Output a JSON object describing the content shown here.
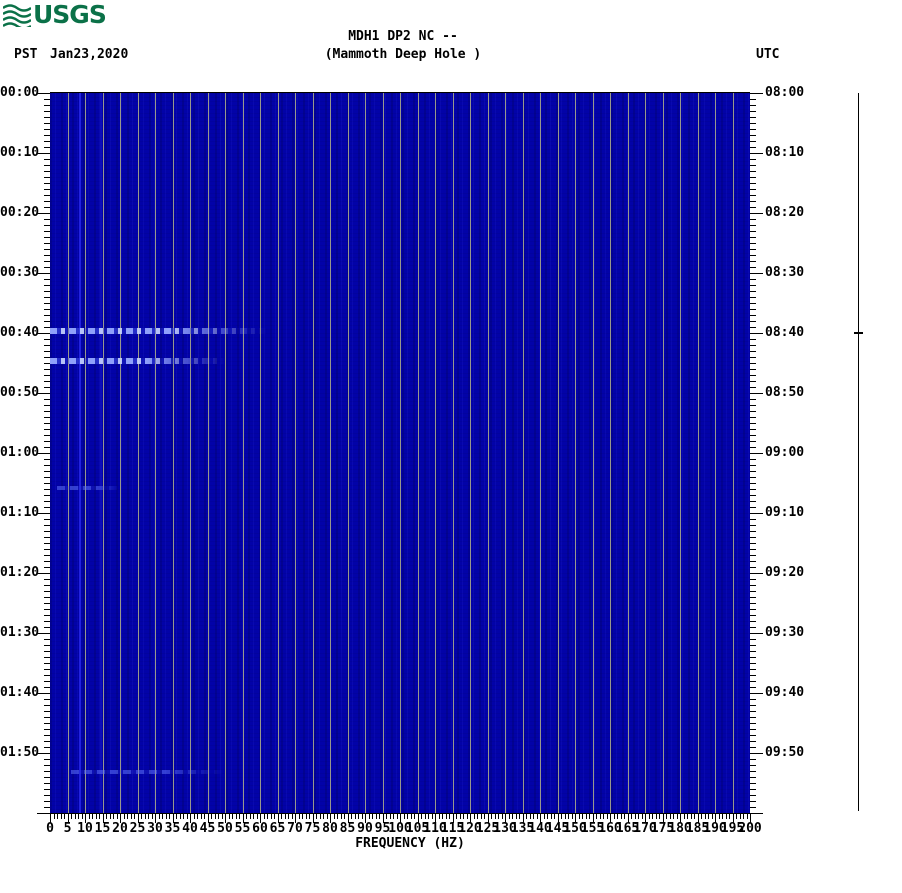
{
  "header": {
    "logo_text": "USGS",
    "tz_left": "PST",
    "date": "Jan23,2020",
    "title": "MDH1 DP2 NC --",
    "subtitle": "(Mammoth Deep Hole )",
    "tz_right": "UTC"
  },
  "chart_data": {
    "type": "heatmap",
    "subtype": "seismic-spectrogram",
    "title": "MDH1 DP2 NC --",
    "station_name": "(Mammoth Deep Hole )",
    "date": "Jan23,2020",
    "xlabel": "FREQUENCY (HZ)",
    "x_range_hz": [
      0,
      200
    ],
    "x_major_tick_hz": 5,
    "x_minor_tick_hz": 1,
    "x_tick_labels": [
      0,
      5,
      10,
      15,
      20,
      25,
      30,
      35,
      40,
      45,
      50,
      55,
      60,
      65,
      70,
      75,
      80,
      85,
      90,
      95,
      100,
      105,
      110,
      115,
      120,
      125,
      130,
      135,
      140,
      145,
      150,
      155,
      160,
      165,
      170,
      175,
      180,
      185,
      190,
      195,
      200
    ],
    "y_duration_minutes": 120,
    "y_major_tick_minutes": 10,
    "y_minor_tick_minutes": 1,
    "left_axis_times_pst": [
      "00:00",
      "00:10",
      "00:20",
      "00:30",
      "00:40",
      "00:50",
      "01:00",
      "01:10",
      "01:20",
      "01:30",
      "01:40",
      "01:50"
    ],
    "right_axis_times_utc": [
      "08:00",
      "08:10",
      "08:20",
      "08:30",
      "08:40",
      "08:50",
      "09:00",
      "09:10",
      "09:20",
      "09:30",
      "09:40",
      "09:50"
    ],
    "grid": true,
    "gridline_every_hz": 5,
    "colors": {
      "plot_bg": "#0202a8",
      "gridline": "#98988c",
      "event_bright": "#96a8ff",
      "event_faint": "#5f73f8",
      "axis_text": "#000000",
      "usgs_green": "#0b7148"
    },
    "events": [
      {
        "time_pst": "00:40",
        "minute": 39.6,
        "freq_from_hz": 0,
        "freq_to_hz": 62,
        "intensity": "strong"
      },
      {
        "time_pst": "00:45",
        "minute": 44.6,
        "freq_from_hz": 0,
        "freq_to_hz": 50,
        "intensity": "strong"
      },
      {
        "time_pst": "01:06",
        "minute": 65.8,
        "freq_from_hz": 2,
        "freq_to_hz": 20,
        "intensity": "faint"
      },
      {
        "time_pst": "01:53",
        "minute": 113.2,
        "freq_from_hz": 6,
        "freq_to_hz": 50,
        "intensity": "faint"
      }
    ],
    "persistent_tones_hz": [
      {
        "freq_hz": 8.5,
        "strength": "medium"
      },
      {
        "freq_hz": 14.5,
        "strength": "weak"
      }
    ],
    "right_trace": {
      "style": "flat-line",
      "event_blip_minute": 40
    }
  }
}
